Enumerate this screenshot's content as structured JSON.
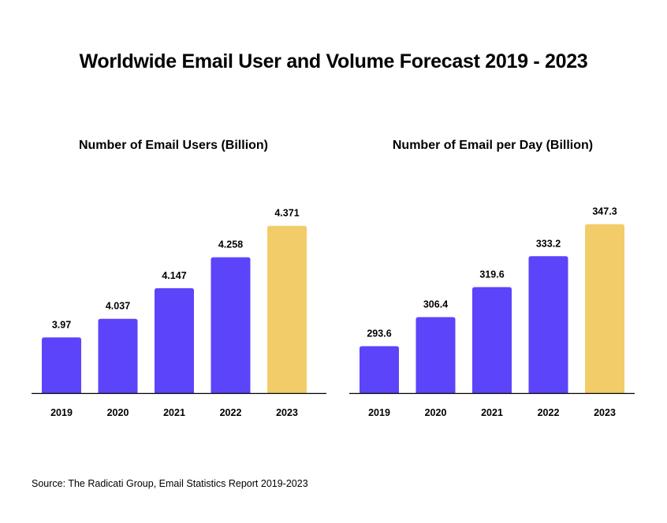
{
  "title": "Worldwide Email User and Volume Forecast 2019 - 2023",
  "source": "Source: The Radicati Group, Email Statistics Report 2019-2023",
  "colors": {
    "bar": "#5b44fa",
    "highlight": "#f2cc69",
    "axis": "#000000"
  },
  "chart_data": [
    {
      "type": "bar",
      "title": "Number of Email Users (Billion)",
      "categories": [
        "2019",
        "2020",
        "2021",
        "2022",
        "2023"
      ],
      "values": [
        3.97,
        4.037,
        4.147,
        4.258,
        4.371
      ],
      "value_labels": [
        "3.97",
        "4.037",
        "4.147",
        "4.258",
        "4.371"
      ],
      "highlight": [
        "2023"
      ],
      "ylim": [
        3.77,
        4.39
      ],
      "grid": false
    },
    {
      "type": "bar",
      "title": "Number of Email per Day (Billion)",
      "categories": [
        "2019",
        "2020",
        "2021",
        "2022",
        "2023"
      ],
      "values": [
        293.6,
        306.4,
        319.6,
        333.2,
        347.3
      ],
      "value_labels": [
        "293.6",
        "306.4",
        "319.6",
        "333.2",
        "347.3"
      ],
      "highlight": [
        "2023"
      ],
      "ylim": [
        273,
        348.9
      ],
      "grid": false
    }
  ]
}
